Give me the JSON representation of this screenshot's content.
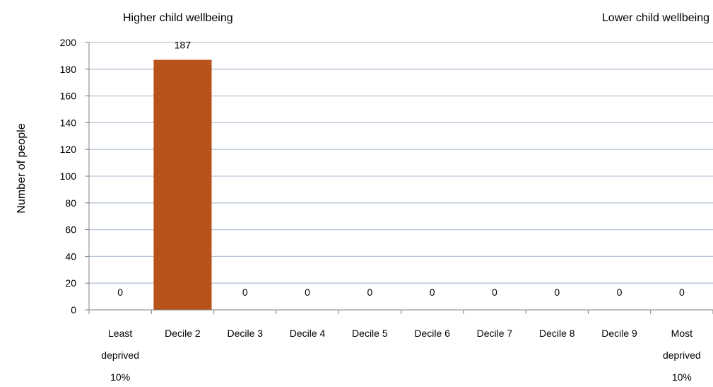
{
  "chart_data": {
    "type": "bar",
    "title": "",
    "xlabel": "",
    "ylabel": "Number of people",
    "ylim": [
      0,
      200
    ],
    "yticks": [
      0,
      20,
      40,
      60,
      80,
      100,
      120,
      140,
      160,
      180,
      200
    ],
    "grid": true,
    "legend": "none",
    "annotations": {
      "left": "Higher child wellbeing",
      "right": "Lower child wellbeing"
    },
    "categories": [
      [
        "Least",
        "deprived",
        "10%"
      ],
      [
        "Decile 2"
      ],
      [
        "Decile 3"
      ],
      [
        "Decile 4"
      ],
      [
        "Decile 5"
      ],
      [
        "Decile 6"
      ],
      [
        "Decile 7"
      ],
      [
        "Decile 8"
      ],
      [
        "Decile 9"
      ],
      [
        "Most",
        "deprived",
        "10%"
      ]
    ],
    "values": [
      0,
      187,
      0,
      0,
      0,
      0,
      0,
      0,
      0,
      0
    ],
    "data_labels": [
      "0",
      "187",
      "0",
      "0",
      "0",
      "0",
      "0",
      "0",
      "0",
      "0"
    ],
    "colors": {
      "bar": "#b8521b",
      "grid": "#b7c5d8",
      "axis": "#808080"
    }
  }
}
